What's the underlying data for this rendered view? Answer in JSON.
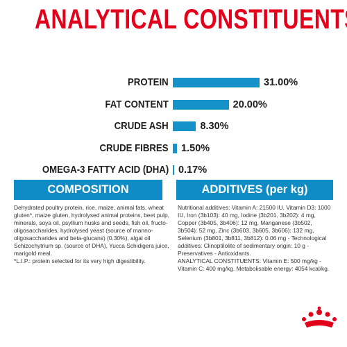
{
  "title": "ANALYTICAL CONSTITUENTS",
  "chart_data": {
    "type": "bar",
    "orientation": "horizontal",
    "categories": [
      "PROTEIN",
      "FAT CONTENT",
      "CRUDE ASH",
      "CRUDE FIBRES",
      "OMEGA-3 FATTY ACID (DHA)"
    ],
    "values": [
      31.0,
      20.0,
      8.3,
      1.5,
      0.17
    ],
    "value_labels": [
      "31.00%",
      "20.00%",
      "8.30%",
      "1.50%",
      "0.17%"
    ],
    "xlim": [
      0,
      31
    ],
    "grid": false
  },
  "composition": {
    "header": "COMPOSITION",
    "text": "Dehydrated poultry protein, rice, maize, animal fats, wheat gluten*, maize gluten, hydrolysed animal proteins, beet pulp, minerals, soya oil, psyllium husks and seeds, fish oil, fructo-oligosaccharides, hydrolysed yeast (source of manno-oligosaccharides and beta-glucans) (0.30%), algal oil Schizochytrium sp. (source of DHA), Yucca Schidigera juice, marigold meal.\n*L.I.P.: protein selected for its very high digestibility."
  },
  "additives": {
    "header": "ADDITIVES (per kg)",
    "text": "Nutritional additives: Vitamin A: 21500 IU, Vitamin D3: 1000 IU, Iron (3b103): 40 mg, Iodine (3b201, 3b202): 4 mg, Copper (3b405, 3b406): 12 mg, Manganese (3b502, 3b504): 52 mg, Zinc (3b603, 3b605, 3b606): 132 mg, Selenium (3b801, 3b811, 3b812): 0.06 mg - Technological additives: Clinoptilolite of sedimentary origin: 10 g - Preservatives - Antioxidants.\nANALYTICAL CONSTITUENTS: Vitamin E: 500 mg/kg - Vitamin C: 400 mg/kg. Metabolisable energy: 4054 kcal/kg."
  },
  "colors": {
    "title": "#e2001a",
    "accent": "#0f8cc6",
    "bar": "#1593c9",
    "logo": "#e2001a"
  },
  "icons": {
    "logo": "crown-logo-icon"
  }
}
